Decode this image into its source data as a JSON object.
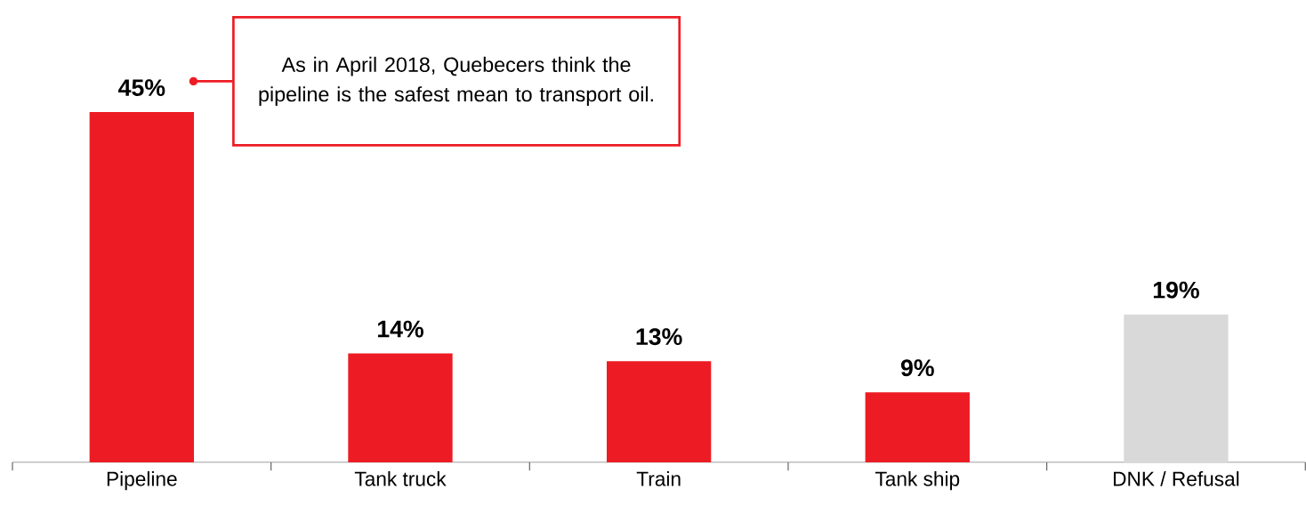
{
  "chart_data": {
    "type": "bar",
    "categories": [
      "Pipeline",
      "Tank truck",
      "Train",
      "Tank ship",
      "DNK / Refusal"
    ],
    "values": [
      45,
      14,
      13,
      9,
      19
    ],
    "colors": [
      "#ed1c24",
      "#ed1c24",
      "#ed1c24",
      "#ed1c24",
      "#d9d9d9"
    ],
    "value_labels": [
      "45%",
      "14%",
      "13%",
      "9%",
      "19%"
    ],
    "annotations": [
      "As in April 2018, Quebecers think the pipeline is the safest mean to transport oil."
    ]
  }
}
